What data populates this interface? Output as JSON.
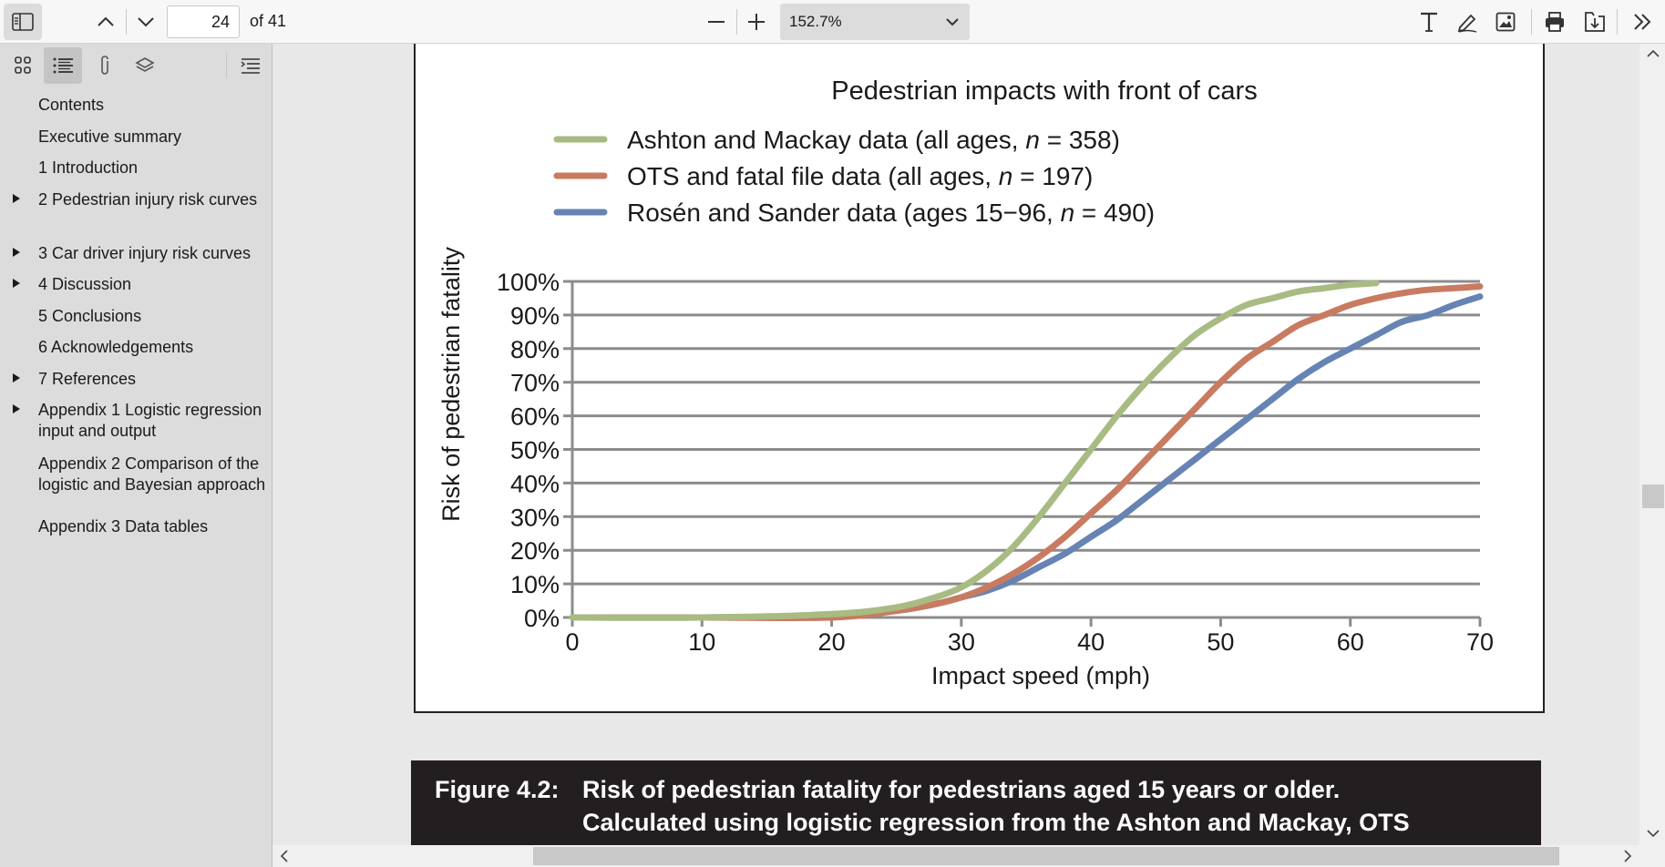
{
  "toolbar": {
    "page_number": "24",
    "page_total": "of 41",
    "zoom": "152.7%",
    "icons": [
      "sidebar-toggle-icon",
      "chevron-up-icon",
      "chevron-down-icon",
      "zoom-out-icon",
      "zoom-in-icon",
      "text-icon",
      "draw-icon",
      "image-icon",
      "print-icon",
      "save-icon",
      "more-tools-icon"
    ]
  },
  "sidebar": {
    "tabs": [
      "thumbnails-icon",
      "outline-icon",
      "attachments-icon",
      "layers-icon"
    ],
    "outline": [
      {
        "label": "Contents",
        "expandable": false
      },
      {
        "label": "Executive summary",
        "expandable": false
      },
      {
        "label": "1 Introduction",
        "expandable": false
      },
      {
        "label": "2 Pedestrian injury risk curves",
        "expandable": true
      },
      {
        "label": "3 Car driver injury risk curves",
        "expandable": true
      },
      {
        "label": "4 Discussion",
        "expandable": true
      },
      {
        "label": "5 Conclusions",
        "expandable": false
      },
      {
        "label": "6 Acknowledgements",
        "expandable": false
      },
      {
        "label": "7 References",
        "expandable": true
      },
      {
        "label": "Appendix 1 Logistic regression input and output",
        "expandable": true
      },
      {
        "label": "Appendix 2 Comparison of the logistic and Bayesian approach",
        "expandable": false
      },
      {
        "label": "Appendix 3 Data tables",
        "expandable": false
      }
    ]
  },
  "chart_data": {
    "type": "line",
    "title": "Pedestrian impacts with front of cars",
    "xlabel": "Impact speed (mph)",
    "ylabel": "Risk of pedestrian fatality",
    "xlim": [
      0,
      70
    ],
    "ylim": [
      0,
      100
    ],
    "x_ticks": [
      "0",
      "10",
      "20",
      "30",
      "40",
      "50",
      "60",
      "70"
    ],
    "y_ticks": [
      "0%",
      "10%",
      "20%",
      "30%",
      "40%",
      "50%",
      "60%",
      "70%",
      "80%",
      "90%",
      "100%"
    ],
    "grid": true,
    "legend_position": "top",
    "series": [
      {
        "name": "Ashton and Mackay data (all ages, n = 358)",
        "legend_prefix": "Ashton and Mackay data (all ages, ",
        "legend_suffix": " = 358)",
        "color": "#a8bb82",
        "x": [
          0,
          10,
          20,
          25,
          28,
          30,
          32,
          34,
          36,
          38,
          40,
          42,
          44,
          46,
          48,
          50,
          52,
          54,
          56,
          58,
          60,
          62
        ],
        "y": [
          0,
          0,
          1,
          3,
          6,
          9,
          14,
          21,
          30,
          40,
          50,
          60,
          69,
          77,
          84,
          89,
          93,
          95,
          97,
          98,
          99,
          99.5
        ]
      },
      {
        "name": "OTS and fatal file data (all ages, n = 197)",
        "legend_prefix": "OTS and fatal file data (all ages, ",
        "legend_suffix": " = 197)",
        "color": "#c87b60",
        "x": [
          1,
          10,
          20,
          25,
          28,
          30,
          32,
          34,
          36,
          38,
          40,
          42,
          44,
          46,
          48,
          50,
          52,
          54,
          56,
          58,
          60,
          62,
          64,
          66,
          68,
          70
        ],
        "y": [
          0,
          0,
          0,
          2,
          4,
          6,
          9,
          13,
          18,
          24,
          31,
          38,
          46,
          54,
          62,
          70,
          77,
          82,
          87,
          90,
          93,
          95,
          96.5,
          97.5,
          98,
          98.5
        ]
      },
      {
        "name": "Rosén and Sander data (ages 15−96, n = 490)",
        "legend_prefix": "Rosén and Sander data (ages 15−96, ",
        "legend_suffix": " = 490)",
        "color": "#6683b3",
        "x": [
          1,
          10,
          20,
          25,
          28,
          30,
          32,
          34,
          36,
          38,
          40,
          42,
          44,
          46,
          48,
          50,
          52,
          54,
          56,
          58,
          60,
          62,
          64,
          66,
          68,
          70
        ],
        "y": [
          0,
          0,
          0.5,
          2,
          4,
          6,
          8,
          11,
          15,
          19,
          24,
          29,
          35,
          41,
          47,
          53,
          59,
          65,
          71,
          76,
          80,
          84,
          88,
          90,
          93,
          95.5
        ]
      }
    ]
  },
  "caption": {
    "label": "Figure 4.2:",
    "line1": "Risk of pedestrian fatality for pedestrians aged 15 years or older.",
    "line2": "Calculated using logistic regression from the Ashton and Mackay, OTS"
  }
}
